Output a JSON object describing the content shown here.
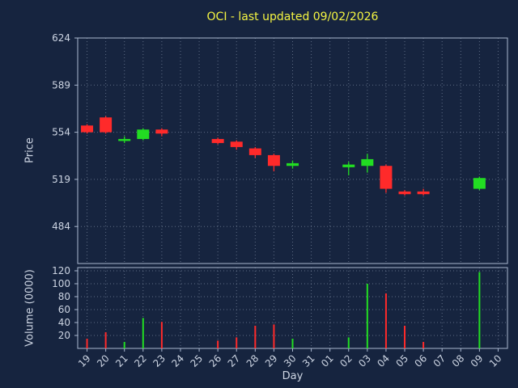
{
  "chart_data": {
    "type": "candlestick",
    "title": "OCI - last updated 09/02/2026",
    "xlabel": "Day",
    "price_ylabel": "Price",
    "volume_ylabel": "Volume (0000)",
    "price_ticks": [
      624,
      589,
      554,
      519,
      484
    ],
    "price_ylim": [
      456.5,
      624
    ],
    "volume_ticks": [
      120,
      100,
      80,
      60,
      40,
      20
    ],
    "volume_ylim": [
      0,
      125
    ],
    "grid": true,
    "days": [
      "19",
      "20",
      "21",
      "22",
      "23",
      "24",
      "25",
      "26",
      "27",
      "28",
      "29",
      "30",
      "31",
      "01",
      "02",
      "03",
      "04",
      "05",
      "06",
      "07",
      "08",
      "09",
      "10"
    ],
    "ohlc_note": "entries are [open, high, low, close, volume(0000)]; null = non-trading day",
    "ohlc": [
      [
        559,
        560,
        553,
        554,
        15
      ],
      [
        565,
        566,
        553,
        554,
        25
      ],
      [
        548,
        551,
        546,
        549,
        10
      ],
      [
        549,
        557,
        548,
        556,
        47
      ],
      [
        556,
        557,
        551,
        553,
        41
      ],
      null,
      null,
      [
        549,
        550,
        545,
        546,
        12
      ],
      [
        547,
        548,
        541,
        543,
        17
      ],
      [
        542,
        543,
        535,
        537,
        35
      ],
      [
        537,
        538,
        525,
        529,
        37
      ],
      [
        529,
        533,
        527,
        531,
        15
      ],
      null,
      null,
      [
        528,
        532,
        522,
        530,
        17
      ],
      [
        529,
        538,
        524,
        534,
        100
      ],
      [
        529,
        530,
        509,
        512,
        85
      ],
      [
        510,
        511,
        507,
        508,
        35
      ],
      [
        510,
        512,
        507,
        508,
        10
      ],
      null,
      null,
      [
        512,
        521,
        511,
        520,
        118
      ],
      null
    ],
    "colors": {
      "up": "#22dd22",
      "down": "#ff2a2a",
      "background": "#16243f",
      "grid": "#9aa7bd",
      "axis_text": "#cdd5e3",
      "title": "#f5f542",
      "border": "#a9b7cf"
    }
  }
}
